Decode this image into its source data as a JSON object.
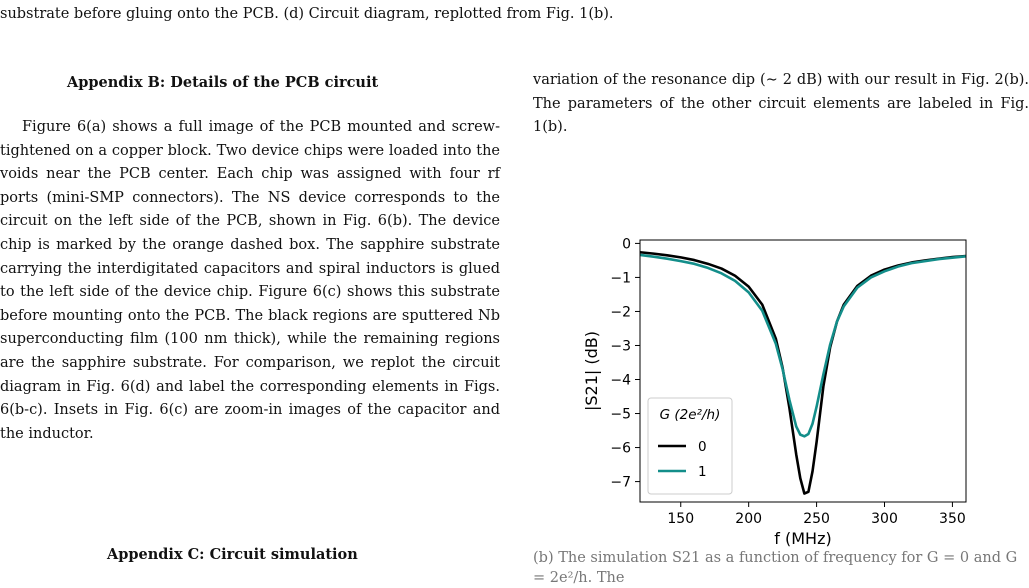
{
  "caption_tail": "substrate before gluing onto the PCB. (d) Circuit diagram, replotted from Fig. 1(b).",
  "appendix_b": {
    "heading": "Appendix B: Details of the PCB circuit",
    "paragraph": "Figure 6(a) shows a full image of the PCB mounted and screw-tightened on a copper block. Two device chips were loaded into the voids near the PCB center. Each chip was assigned with four rf ports (mini-SMP connectors). The NS device corresponds to the circuit on the left side of the PCB, shown in Fig. 6(b). The device chip is marked by the orange dashed box. The sapphire substrate carrying the interdigitated capacitors and spiral inductors is glued to the left side of the device chip. Figure 6(c) shows this substrate before mounting onto the PCB. The black regions are sputtered Nb superconducting film (100 nm thick), while the remaining regions are the sapphire substrate. For comparison, we replot the circuit diagram in Fig. 6(d) and label the corresponding elements in Figs. 6(b-c). Insets in Fig. 6(c) are zoom-in images of the capacitor and the inductor."
  },
  "appendix_c": {
    "heading": "Appendix C: Circuit simulation"
  },
  "right_column": {
    "paragraph": "variation of the resonance dip (∼ 2 dB) with our result in Fig. 2(b). The parameters of the other circuit elements are labeled in Fig. 1(b).",
    "bottom_fragment": "(b) The simulation S21 as a function of frequency for G = 0 and G = 2e²/h. The"
  },
  "chart_data": {
    "type": "line",
    "xlabel": "f (MHz)",
    "ylabel": "|S21| (dB)",
    "xlim": [
      120,
      360
    ],
    "ylim": [
      -7.6,
      0.1
    ],
    "xticks": [
      150,
      200,
      250,
      300,
      350
    ],
    "yticks": [
      0,
      -1,
      -2,
      -3,
      -4,
      -5,
      -6,
      -7
    ],
    "grid": false,
    "legend": {
      "title": "G (2e²/h)",
      "placement": "lower-left"
    },
    "series": [
      {
        "name": "0",
        "color": "#000000",
        "x": [
          120,
          130,
          140,
          150,
          160,
          170,
          180,
          190,
          200,
          210,
          220,
          225,
          230,
          235,
          238,
          241,
          244,
          247,
          250,
          255,
          260,
          265,
          270,
          280,
          290,
          300,
          310,
          320,
          330,
          340,
          350,
          360
        ],
        "y": [
          -0.26,
          -0.3,
          -0.35,
          -0.41,
          -0.49,
          -0.6,
          -0.74,
          -0.95,
          -1.27,
          -1.8,
          -2.8,
          -3.66,
          -4.84,
          -6.2,
          -6.9,
          -7.35,
          -7.3,
          -6.7,
          -5.84,
          -4.2,
          -3.05,
          -2.3,
          -1.8,
          -1.25,
          -0.95,
          -0.77,
          -0.65,
          -0.56,
          -0.5,
          -0.45,
          -0.4,
          -0.37
        ]
      },
      {
        "name": "1",
        "color": "#138e8a",
        "x": [
          120,
          130,
          140,
          150,
          160,
          170,
          180,
          190,
          200,
          210,
          220,
          225,
          230,
          235,
          238,
          241,
          244,
          247,
          250,
          255,
          260,
          265,
          270,
          280,
          290,
          300,
          310,
          320,
          330,
          340,
          350,
          360
        ],
        "y": [
          -0.34,
          -0.39,
          -0.45,
          -0.52,
          -0.6,
          -0.72,
          -0.88,
          -1.1,
          -1.44,
          -1.98,
          -2.95,
          -3.7,
          -4.6,
          -5.38,
          -5.62,
          -5.67,
          -5.6,
          -5.3,
          -4.8,
          -3.85,
          -2.97,
          -2.3,
          -1.85,
          -1.3,
          -1.0,
          -0.82,
          -0.68,
          -0.58,
          -0.52,
          -0.46,
          -0.42,
          -0.38
        ]
      }
    ]
  }
}
